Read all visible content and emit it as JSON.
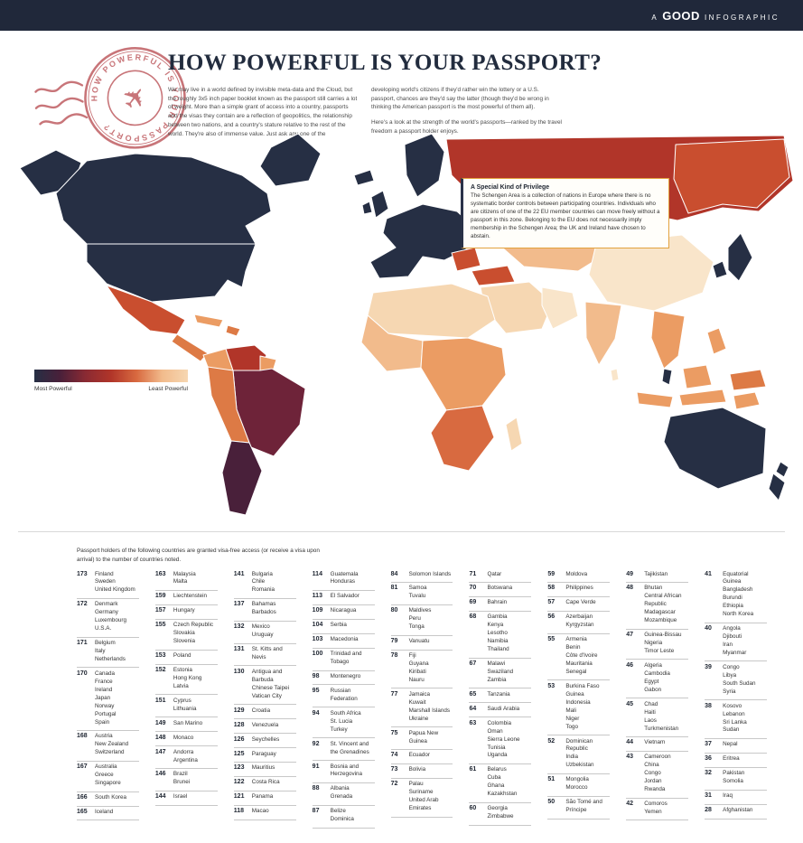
{
  "header": {
    "prefix": "A",
    "brand": "GOOD",
    "suffix": "INFOGRAPHIC"
  },
  "stamp": {
    "circle_text": "HOW POWERFUL IS YOUR PASSPORT?",
    "plane_glyph": "✈"
  },
  "title": "HOW POWERFUL IS YOUR PASSPORT?",
  "intro": {
    "col1": "We may live in a world defined by invisible meta-data and the Cloud, but the roughly 3x5 inch paper booklet known as the passport still carries a lot of weight. More than a simple grant of access into a country, passports and the visas they contain are a reflection of geopolitics, the relationship between two nations, and a country's stature relative to the rest of the world. They're also of immense value. Just ask any one of the",
    "col2_p1": "developing world's citizens if they'd rather win the lottery or a U.S. passport, chances are they'd say the latter (though they'd be wrong in thinking the American passport is the most powerful of them all).",
    "col2_p2": "Here's a look at the strength of the world's passports—ranked by the travel freedom a passport holder enjoys."
  },
  "callout": {
    "title": "A Special Kind of Privilege",
    "body": "The Schengen Area is a collection of nations in Europe where there is no systematic border controls between participating countries. Individuals who are citizens of one of the 22 EU member countries can move freely without a passport in this zone. Belonging to the EU does not necessarily imply membership in the Schengen Area; the UK and Ireland have chosen to abstain."
  },
  "legend": {
    "left_label": "Most Powerful",
    "right_label": "Least Powerful",
    "colors": [
      "#262f44",
      "#49203a",
      "#8a2a33",
      "#b13529",
      "#d86a40",
      "#f2bb8c",
      "#f6d7b2"
    ]
  },
  "list_note": "Passport holders of the following countries are granted visa-free access (or receive a visa upon arrival) to the number of countries noted.",
  "map": {
    "palette": {
      "navy": "#262f44",
      "wine": "#6e2339",
      "darkwine": "#49203a",
      "red": "#b13529",
      "redorange": "#c94e2f",
      "salmon": "#d86a40",
      "orange": "#dd7a45",
      "lightorange": "#eb9c63",
      "peach": "#f2bb8c",
      "cream": "#f6d7b2",
      "pale": "#f9e5ca"
    }
  },
  "chart_data": {
    "type": "heatmap",
    "subtype": "world-choropleth",
    "title": "How Powerful Is Your Passport?",
    "metric": "Number of countries granting visa-free access (or visa upon arrival) to passport holders",
    "range": {
      "min": 28,
      "max": 173
    },
    "legend": [
      "Most Powerful",
      "Least Powerful"
    ],
    "columns": [
      [
        {
          "rank": "173",
          "countries": [
            "Finland",
            "Sweden",
            "United Kingdom"
          ]
        },
        {
          "rank": "172",
          "countries": [
            "Denmark",
            "Germany",
            "Luxembourg",
            "U.S.A."
          ]
        },
        {
          "rank": "171",
          "countries": [
            "Belgium",
            "Italy",
            "Netherlands"
          ]
        },
        {
          "rank": "170",
          "countries": [
            "Canada",
            "France",
            "Ireland",
            "Japan",
            "Norway",
            "Portugal",
            "Spain"
          ]
        },
        {
          "rank": "168",
          "countries": [
            "Austria",
            "New Zealand",
            "Switzerland"
          ]
        },
        {
          "rank": "167",
          "countries": [
            "Australia",
            "Greece",
            "Singapore"
          ]
        },
        {
          "rank": "166",
          "countries": [
            "South Korea"
          ]
        },
        {
          "rank": "165",
          "countries": [
            "Iceland"
          ]
        }
      ],
      [
        {
          "rank": "163",
          "countries": [
            "Malaysia",
            "Malta"
          ]
        },
        {
          "rank": "159",
          "countries": [
            "Liechtenstein"
          ]
        },
        {
          "rank": "157",
          "countries": [
            "Hungary"
          ]
        },
        {
          "rank": "155",
          "countries": [
            "Czech Republic",
            "Slovakia",
            "Slovenia"
          ]
        },
        {
          "rank": "153",
          "countries": [
            "Poland"
          ]
        },
        {
          "rank": "152",
          "countries": [
            "Estonia",
            "Hong Kong",
            "Latvia"
          ]
        },
        {
          "rank": "151",
          "countries": [
            "Cyprus",
            "Lithuania"
          ]
        },
        {
          "rank": "149",
          "countries": [
            "San Marino"
          ]
        },
        {
          "rank": "148",
          "countries": [
            "Monaco"
          ]
        },
        {
          "rank": "147",
          "countries": [
            "Andorra",
            "Argentina"
          ]
        },
        {
          "rank": "146",
          "countries": [
            "Brazil",
            "Brunei"
          ]
        },
        {
          "rank": "144",
          "countries": [
            "Israel"
          ]
        }
      ],
      [
        {
          "rank": "141",
          "countries": [
            "Bulgaria",
            "Chile",
            "Romania"
          ]
        },
        {
          "rank": "137",
          "countries": [
            "Bahamas",
            "Barbados"
          ]
        },
        {
          "rank": "132",
          "countries": [
            "Mexico",
            "Uruguay"
          ]
        },
        {
          "rank": "131",
          "countries": [
            "St. Kitts and Nevis"
          ]
        },
        {
          "rank": "130",
          "countries": [
            "Antigua and Barbuda",
            "Chinese Taipei",
            "Vatican City"
          ]
        },
        {
          "rank": "129",
          "countries": [
            "Croatia"
          ]
        },
        {
          "rank": "128",
          "countries": [
            "Venezuela"
          ]
        },
        {
          "rank": "126",
          "countries": [
            "Seychelles"
          ]
        },
        {
          "rank": "125",
          "countries": [
            "Paraguay"
          ]
        },
        {
          "rank": "123",
          "countries": [
            "Mauritius"
          ]
        },
        {
          "rank": "122",
          "countries": [
            "Costa Rica"
          ]
        },
        {
          "rank": "121",
          "countries": [
            "Panama"
          ]
        },
        {
          "rank": "118",
          "countries": [
            "Macao"
          ]
        }
      ],
      [
        {
          "rank": "114",
          "countries": [
            "Guatemala",
            "Honduras"
          ]
        },
        {
          "rank": "113",
          "countries": [
            "El Salvador"
          ]
        },
        {
          "rank": "109",
          "countries": [
            "Nicaragua"
          ]
        },
        {
          "rank": "104",
          "countries": [
            "Serbia"
          ]
        },
        {
          "rank": "103",
          "countries": [
            "Macedonia"
          ]
        },
        {
          "rank": "100",
          "countries": [
            "Trinidad and Tobago"
          ]
        },
        {
          "rank": "98",
          "countries": [
            "Montenegro"
          ]
        },
        {
          "rank": "95",
          "countries": [
            "Russian Federation"
          ]
        },
        {
          "rank": "94",
          "countries": [
            "South Africa",
            "St. Lucia",
            "Turkey"
          ]
        },
        {
          "rank": "92",
          "countries": [
            "St. Vincent and the Grenadines"
          ]
        },
        {
          "rank": "91",
          "countries": [
            "Bosnia and Herzegovina"
          ]
        },
        {
          "rank": "88",
          "countries": [
            "Albania",
            "Grenada"
          ]
        },
        {
          "rank": "87",
          "countries": [
            "Belize",
            "Dominica"
          ]
        }
      ],
      [
        {
          "rank": "84",
          "countries": [
            "Solomon Islands"
          ]
        },
        {
          "rank": "81",
          "countries": [
            "Samoa",
            "Tuvalu"
          ]
        },
        {
          "rank": "80",
          "countries": [
            "Maldives",
            "Peru",
            "Tonga"
          ]
        },
        {
          "rank": "79",
          "countries": [
            "Vanuatu"
          ]
        },
        {
          "rank": "78",
          "countries": [
            "Fiji",
            "Guyana",
            "Kiribati",
            "Nauru"
          ]
        },
        {
          "rank": "77",
          "countries": [
            "Jamaica",
            "Kuwait",
            "Marshall Islands",
            "Ukraine"
          ]
        },
        {
          "rank": "75",
          "countries": [
            "Papua New Guinea"
          ]
        },
        {
          "rank": "74",
          "countries": [
            "Ecuador"
          ]
        },
        {
          "rank": "73",
          "countries": [
            "Bolivia"
          ]
        },
        {
          "rank": "72",
          "countries": [
            "Palau",
            "Suriname",
            "United Arab Emirates"
          ]
        }
      ],
      [
        {
          "rank": "71",
          "countries": [
            "Qatar"
          ]
        },
        {
          "rank": "70",
          "countries": [
            "Botswana"
          ]
        },
        {
          "rank": "69",
          "countries": [
            "Bahrain"
          ]
        },
        {
          "rank": "68",
          "countries": [
            "Gambia",
            "Kenya",
            "Lesotho",
            "Namibia",
            "Thailand"
          ]
        },
        {
          "rank": "67",
          "countries": [
            "Malawi",
            "Swaziland",
            "Zambia"
          ]
        },
        {
          "rank": "65",
          "countries": [
            "Tanzania"
          ]
        },
        {
          "rank": "64",
          "countries": [
            "Saudi Arabia"
          ]
        },
        {
          "rank": "63",
          "countries": [
            "Colombia",
            "Oman",
            "Sierra Leone",
            "Tunisia",
            "Uganda"
          ]
        },
        {
          "rank": "61",
          "countries": [
            "Belarus",
            "Cuba",
            "Ghana",
            "Kazakhstan"
          ]
        },
        {
          "rank": "60",
          "countries": [
            "Georgia",
            "Zimbabwe"
          ]
        }
      ],
      [
        {
          "rank": "59",
          "countries": [
            "Moldova"
          ]
        },
        {
          "rank": "58",
          "countries": [
            "Philippines"
          ]
        },
        {
          "rank": "57",
          "countries": [
            "Cape Verde"
          ]
        },
        {
          "rank": "56",
          "countries": [
            "Azerbaijan",
            "Kyrgyzstan"
          ]
        },
        {
          "rank": "55",
          "countries": [
            "Armenia",
            "Benin",
            "Côte d'Ivoire",
            "Mauritania",
            "Senegal"
          ]
        },
        {
          "rank": "53",
          "countries": [
            "Burkina Faso",
            "Guinea",
            "Indonesia",
            "Mali",
            "Niger",
            "Togo"
          ]
        },
        {
          "rank": "52",
          "countries": [
            "Dominican Republic",
            "India",
            "Uzbekistan"
          ]
        },
        {
          "rank": "51",
          "countries": [
            "Mongolia",
            "Morocco"
          ]
        },
        {
          "rank": "50",
          "countries": [
            "São Tomé and Príncipe"
          ]
        }
      ],
      [
        {
          "rank": "49",
          "countries": [
            "Tajikistan"
          ]
        },
        {
          "rank": "48",
          "countries": [
            "Bhutan",
            "Central African Republic",
            "Madagascar",
            "Mozambique"
          ]
        },
        {
          "rank": "47",
          "countries": [
            "Guinea-Bissau",
            "Nigeria",
            "Timor Leste"
          ]
        },
        {
          "rank": "46",
          "countries": [
            "Algeria",
            "Cambodia",
            "Egypt",
            "Gabon"
          ]
        },
        {
          "rank": "45",
          "countries": [
            "Chad",
            "Haiti",
            "Laos",
            "Turkmenistan"
          ]
        },
        {
          "rank": "44",
          "countries": [
            "Vietnam"
          ]
        },
        {
          "rank": "43",
          "countries": [
            "Cameroon",
            "China",
            "Congo",
            "Jordan",
            "Rwanda"
          ]
        },
        {
          "rank": "42",
          "countries": [
            "Comoros",
            "Yemen"
          ]
        }
      ],
      [
        {
          "rank": "41",
          "countries": [
            "Equatorial Guinea",
            "Bangladesh",
            "Burundi",
            "Ethiopia",
            "North Korea"
          ]
        },
        {
          "rank": "40",
          "countries": [
            "Angola",
            "Djibouti",
            "Iran",
            "Myanmar"
          ]
        },
        {
          "rank": "39",
          "countries": [
            "Congo",
            "Libya",
            "South Sudan",
            "Syria"
          ]
        },
        {
          "rank": "38",
          "countries": [
            "Kosovo",
            "Lebanon",
            "Sri Lanka",
            "Sudan"
          ]
        },
        {
          "rank": "37",
          "countries": [
            "Nepal"
          ]
        },
        {
          "rank": "36",
          "countries": [
            "Eritrea"
          ]
        },
        {
          "rank": "32",
          "countries": [
            "Pakistan",
            "Somolia"
          ]
        },
        {
          "rank": "31",
          "countries": [
            "Iraq"
          ]
        },
        {
          "rank": "28",
          "countries": [
            "Afghanistan"
          ]
        }
      ]
    ]
  }
}
